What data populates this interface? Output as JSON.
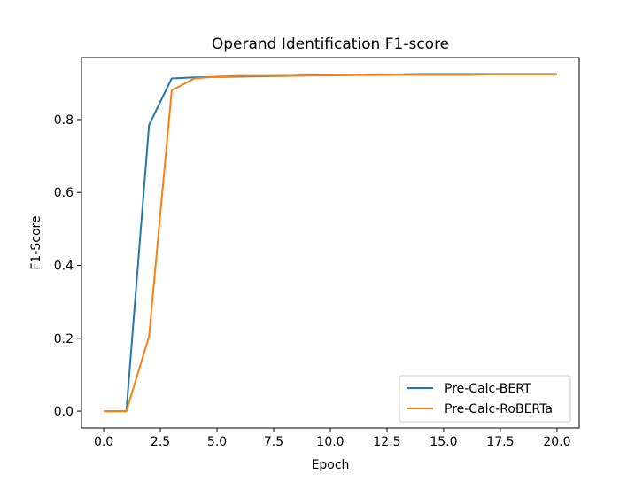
{
  "chart_data": {
    "type": "line",
    "title": "Operand Identification F1-score",
    "xlabel": "Epoch",
    "ylabel": "F1-Score",
    "xlim": [
      -0.98,
      20.98
    ],
    "ylim": [
      -0.046,
      0.97
    ],
    "xticks": [
      0.0,
      2.5,
      5.0,
      7.5,
      10.0,
      12.5,
      15.0,
      17.5,
      20.0
    ],
    "xtick_labels": [
      "0.0",
      "2.5",
      "5.0",
      "7.5",
      "10.0",
      "12.5",
      "15.0",
      "17.5",
      "20.0"
    ],
    "yticks": [
      0.0,
      0.2,
      0.4,
      0.6,
      0.8
    ],
    "ytick_labels": [
      "0.0",
      "0.2",
      "0.4",
      "0.6",
      "0.8"
    ],
    "grid": false,
    "legend_position": "lower-right",
    "x": [
      0,
      1,
      2,
      3,
      4,
      5,
      6,
      7,
      8,
      9,
      10,
      11,
      12,
      13,
      14,
      15,
      16,
      17,
      18,
      19,
      20
    ],
    "series": [
      {
        "name": "Pre-Calc-BERT",
        "color": "#1f77b4",
        "values": [
          0.0,
          0.0,
          0.785,
          0.913,
          0.916,
          0.917,
          0.918,
          0.919,
          0.92,
          0.921,
          0.922,
          0.923,
          0.924,
          0.924,
          0.925,
          0.925,
          0.925,
          0.925,
          0.925,
          0.925,
          0.925
        ]
      },
      {
        "name": "Pre-Calc-RoBERTa",
        "color": "#ff7f0e",
        "values": [
          0.0,
          0.0,
          0.205,
          0.88,
          0.913,
          0.918,
          0.92,
          0.92,
          0.92,
          0.921,
          0.921,
          0.922,
          0.922,
          0.923,
          0.923,
          0.923,
          0.923,
          0.924,
          0.924,
          0.924,
          0.924
        ]
      }
    ]
  }
}
